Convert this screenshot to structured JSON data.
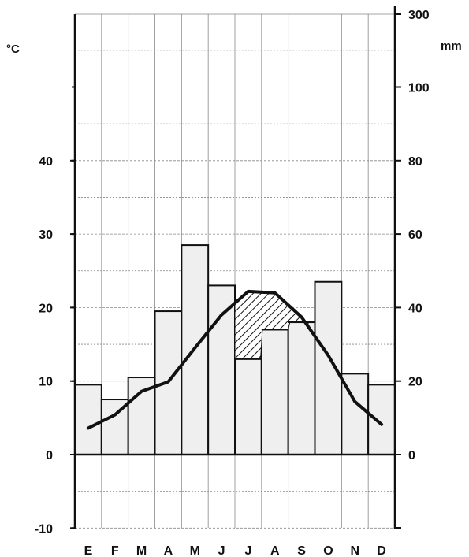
{
  "chart_data": {
    "type": "climograph",
    "categories": [
      "E",
      "F",
      "M",
      "A",
      "M",
      "J",
      "J",
      "A",
      "S",
      "O",
      "N",
      "D"
    ],
    "precipitation": {
      "unit": "mm",
      "mark": "bar",
      "values": [
        19,
        15,
        21,
        39,
        57,
        46,
        26,
        34,
        36,
        47,
        22,
        19
      ]
    },
    "temperature": {
      "unit": "°C",
      "mark": "line",
      "values": [
        3.6,
        5.4,
        8.6,
        9.9,
        14.5,
        19.0,
        22.2,
        22.0,
        18.7,
        13.5,
        7.2,
        4.1
      ]
    },
    "left_axis": {
      "label": "°C",
      "ticks": [
        -10,
        0,
        10,
        20,
        30,
        40
      ],
      "range": [
        -10,
        50
      ]
    },
    "right_axis": {
      "label": "mm",
      "ticks": [
        0,
        20,
        40,
        60,
        80,
        100,
        300
      ],
      "note": "0–100 mm mapped at 2 mm per °C; 300 mm shown at top of axis"
    },
    "dry_period_hatched": {
      "from_month_index": 6,
      "to_month_index": 8
    },
    "grid": true,
    "colors": {
      "bar_fill": "#efefef",
      "bar_stroke": "#111111",
      "line": "#111111",
      "grid": "#888888"
    }
  }
}
